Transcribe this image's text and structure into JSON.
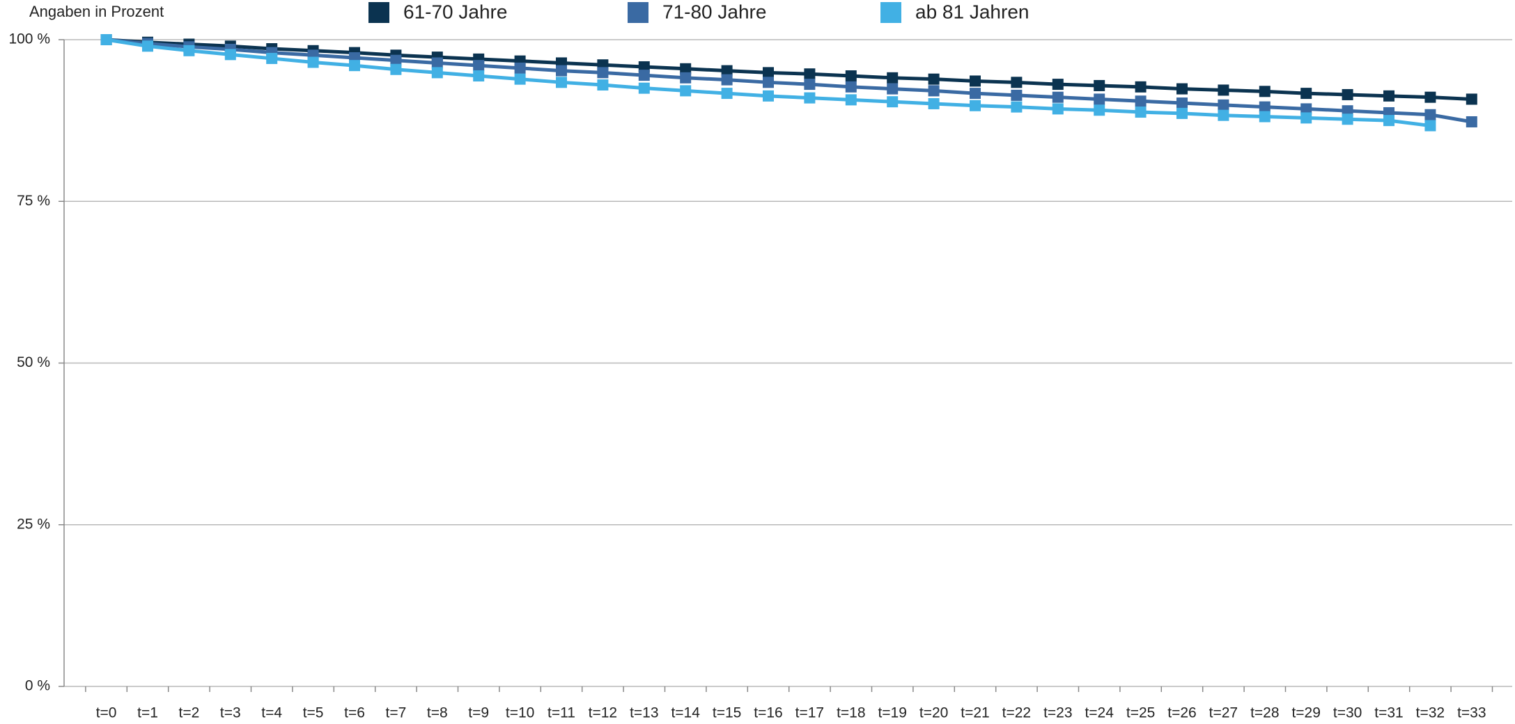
{
  "chart_data": {
    "type": "line",
    "y_label": "Angaben in Prozent",
    "categories": [
      "t=0",
      "t=1",
      "t=2",
      "t=3",
      "t=4",
      "t=5",
      "t=6",
      "t=7",
      "t=8",
      "t=9",
      "t=10",
      "t=11",
      "t=12",
      "t=13",
      "t=14",
      "t=15",
      "t=16",
      "t=17",
      "t=18",
      "t=19",
      "t=20",
      "t=21",
      "t=22",
      "t=23",
      "t=24",
      "t=25",
      "t=26",
      "t=27",
      "t=28",
      "t=29",
      "t=30",
      "t=31",
      "t=32",
      "t=33"
    ],
    "series": [
      {
        "name": "61-70 Jahre",
        "color": "#0b3350",
        "values": [
          100,
          99.6,
          99.3,
          99.0,
          98.6,
          98.3,
          98.0,
          97.6,
          97.3,
          97.0,
          96.7,
          96.4,
          96.1,
          95.8,
          95.5,
          95.2,
          94.9,
          94.7,
          94.4,
          94.1,
          93.9,
          93.6,
          93.4,
          93.1,
          92.9,
          92.7,
          92.4,
          92.2,
          92.0,
          91.7,
          91.5,
          91.3,
          91.1,
          90.8
        ]
      },
      {
        "name": "71-80 Jahre",
        "color": "#3a6aa3",
        "values": [
          100,
          99.4,
          98.9,
          98.5,
          98.0,
          97.6,
          97.2,
          96.8,
          96.4,
          96.0,
          95.6,
          95.2,
          94.9,
          94.5,
          94.1,
          93.8,
          93.4,
          93.1,
          92.7,
          92.4,
          92.1,
          91.7,
          91.4,
          91.1,
          90.8,
          90.5,
          90.2,
          89.9,
          89.6,
          89.3,
          89.0,
          88.7,
          88.4,
          87.3
        ]
      },
      {
        "name": "ab 81 Jahren",
        "color": "#41b0e4",
        "values": [
          100,
          99.0,
          98.3,
          97.7,
          97.1,
          96.5,
          96.0,
          95.4,
          94.9,
          94.4,
          93.9,
          93.4,
          93.0,
          92.5,
          92.1,
          91.7,
          91.3,
          91.0,
          90.7,
          90.4,
          90.1,
          89.8,
          89.6,
          89.3,
          89.1,
          88.8,
          88.6,
          88.3,
          88.1,
          87.9,
          87.7,
          87.5,
          86.7,
          null
        ]
      }
    ],
    "ylim": [
      0,
      100
    ],
    "yticks": [
      {
        "value": 0,
        "label": "0 %"
      },
      {
        "value": 25,
        "label": "25 %"
      },
      {
        "value": 50,
        "label": "50 %"
      },
      {
        "value": 75,
        "label": "75 %"
      },
      {
        "value": 100,
        "label": "100 %"
      }
    ],
    "grid": true,
    "legend": "top"
  }
}
